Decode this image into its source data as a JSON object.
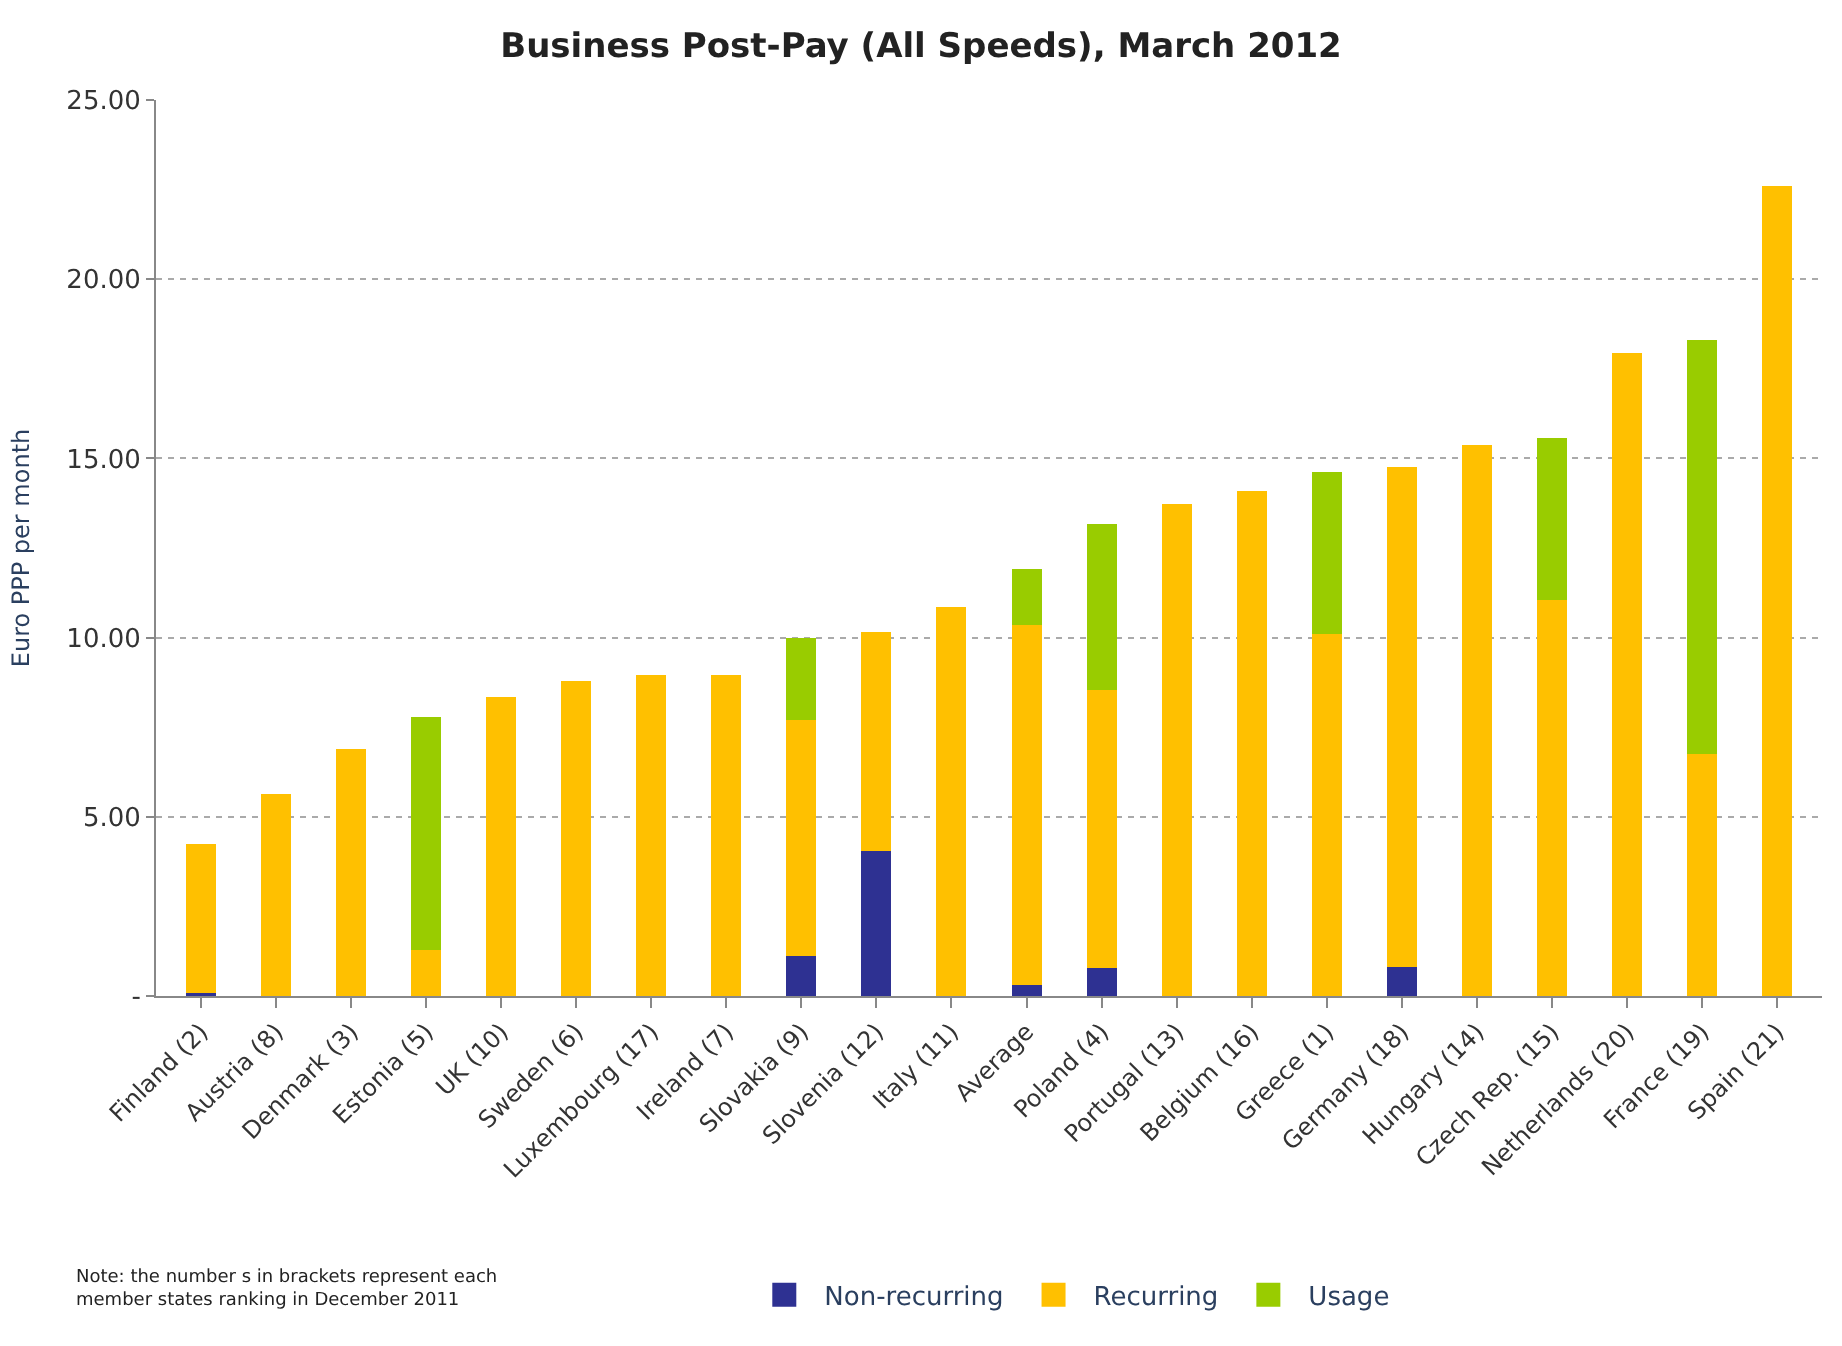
{
  "chart_data": {
    "type": "bar",
    "title": "Business Post-Pay (All Speeds), March 2012",
    "ylabel": "Euro PPP per month",
    "categories": [
      "Finland (2)",
      "Austria (8)",
      "Denmark (3)",
      "Estonia (5)",
      "UK (10)",
      "Sweden (6)",
      "Luxembourg (17)",
      "Ireland (7)",
      "Slovakia (9)",
      "Slovenia (12)",
      "Italy (11)",
      "Average",
      "Poland (4)",
      "Portugal (13)",
      "Belgium (16)",
      "Greece (1)",
      "Germany (18)",
      "Hungary (14)",
      "Czech Rep. (15)",
      "Netherlands (20)",
      "France (19)",
      "Spain (21)"
    ],
    "stacked": true,
    "series": [
      {
        "name": "Non-recurring",
        "color": "#2e3192",
        "values": [
          0.08,
          0,
          0,
          0,
          0,
          0,
          0,
          0,
          1.13,
          4.05,
          0,
          0.32,
          0.77,
          0,
          0,
          0,
          0.81,
          0,
          0,
          0,
          0,
          0
        ]
      },
      {
        "name": "Recurring",
        "color": "#ffc000",
        "values": [
          4.16,
          5.63,
          6.89,
          1.28,
          8.33,
          8.78,
          8.96,
          8.96,
          6.57,
          6.11,
          10.85,
          10.02,
          7.77,
          13.72,
          14.08,
          10.09,
          13.96,
          15.38,
          11.06,
          17.95,
          6.76,
          22.61
        ]
      },
      {
        "name": "Usage",
        "color": "#99cc00",
        "values": [
          0,
          0,
          0,
          6.51,
          0,
          0,
          0,
          0,
          2.28,
          0,
          0,
          1.58,
          4.64,
          0,
          0,
          4.53,
          0,
          0,
          4.5,
          0,
          11.53,
          0
        ]
      }
    ],
    "ylim": [
      0,
      25
    ],
    "yticks": [
      {
        "value": 0,
        "label": "-"
      },
      {
        "value": 5,
        "label": "5.00"
      },
      {
        "value": 10,
        "label": "10.00"
      },
      {
        "value": 15,
        "label": "15.00"
      },
      {
        "value": 20,
        "label": "20.00"
      },
      {
        "value": 25,
        "label": "25.00"
      }
    ],
    "grid": "y",
    "legend": "bottom",
    "annotations": [
      "Note: the number s in brackets represent each member states ranking in December 2011"
    ]
  }
}
